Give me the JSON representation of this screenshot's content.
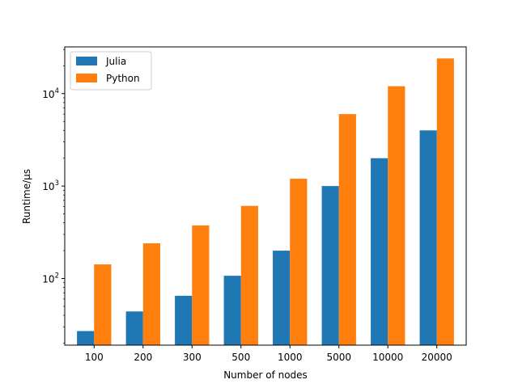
{
  "chart_data": {
    "type": "bar",
    "title": "",
    "xlabel": "Number of nodes",
    "ylabel": "Runtime/µs",
    "yscale": "log",
    "ylim": [
      19,
      32000
    ],
    "grid": false,
    "legend_position": "top-left",
    "categories": [
      "100",
      "200",
      "300",
      "500",
      "1000",
      "5000",
      "10000",
      "20000"
    ],
    "y_tick_labels": [
      {
        "value": 100,
        "base": "10",
        "exp": "2"
      },
      {
        "value": 1000,
        "base": "10",
        "exp": "3"
      },
      {
        "value": 10000,
        "base": "10",
        "exp": "4"
      }
    ],
    "series": [
      {
        "name": "Julia",
        "color": "#1f77b4",
        "values": [
          27,
          44,
          65,
          107,
          200,
          1000,
          2000,
          4000
        ]
      },
      {
        "name": "Python",
        "color": "#ff7f0e",
        "values": [
          142,
          240,
          375,
          610,
          1200,
          6000,
          12000,
          24000
        ]
      }
    ]
  }
}
